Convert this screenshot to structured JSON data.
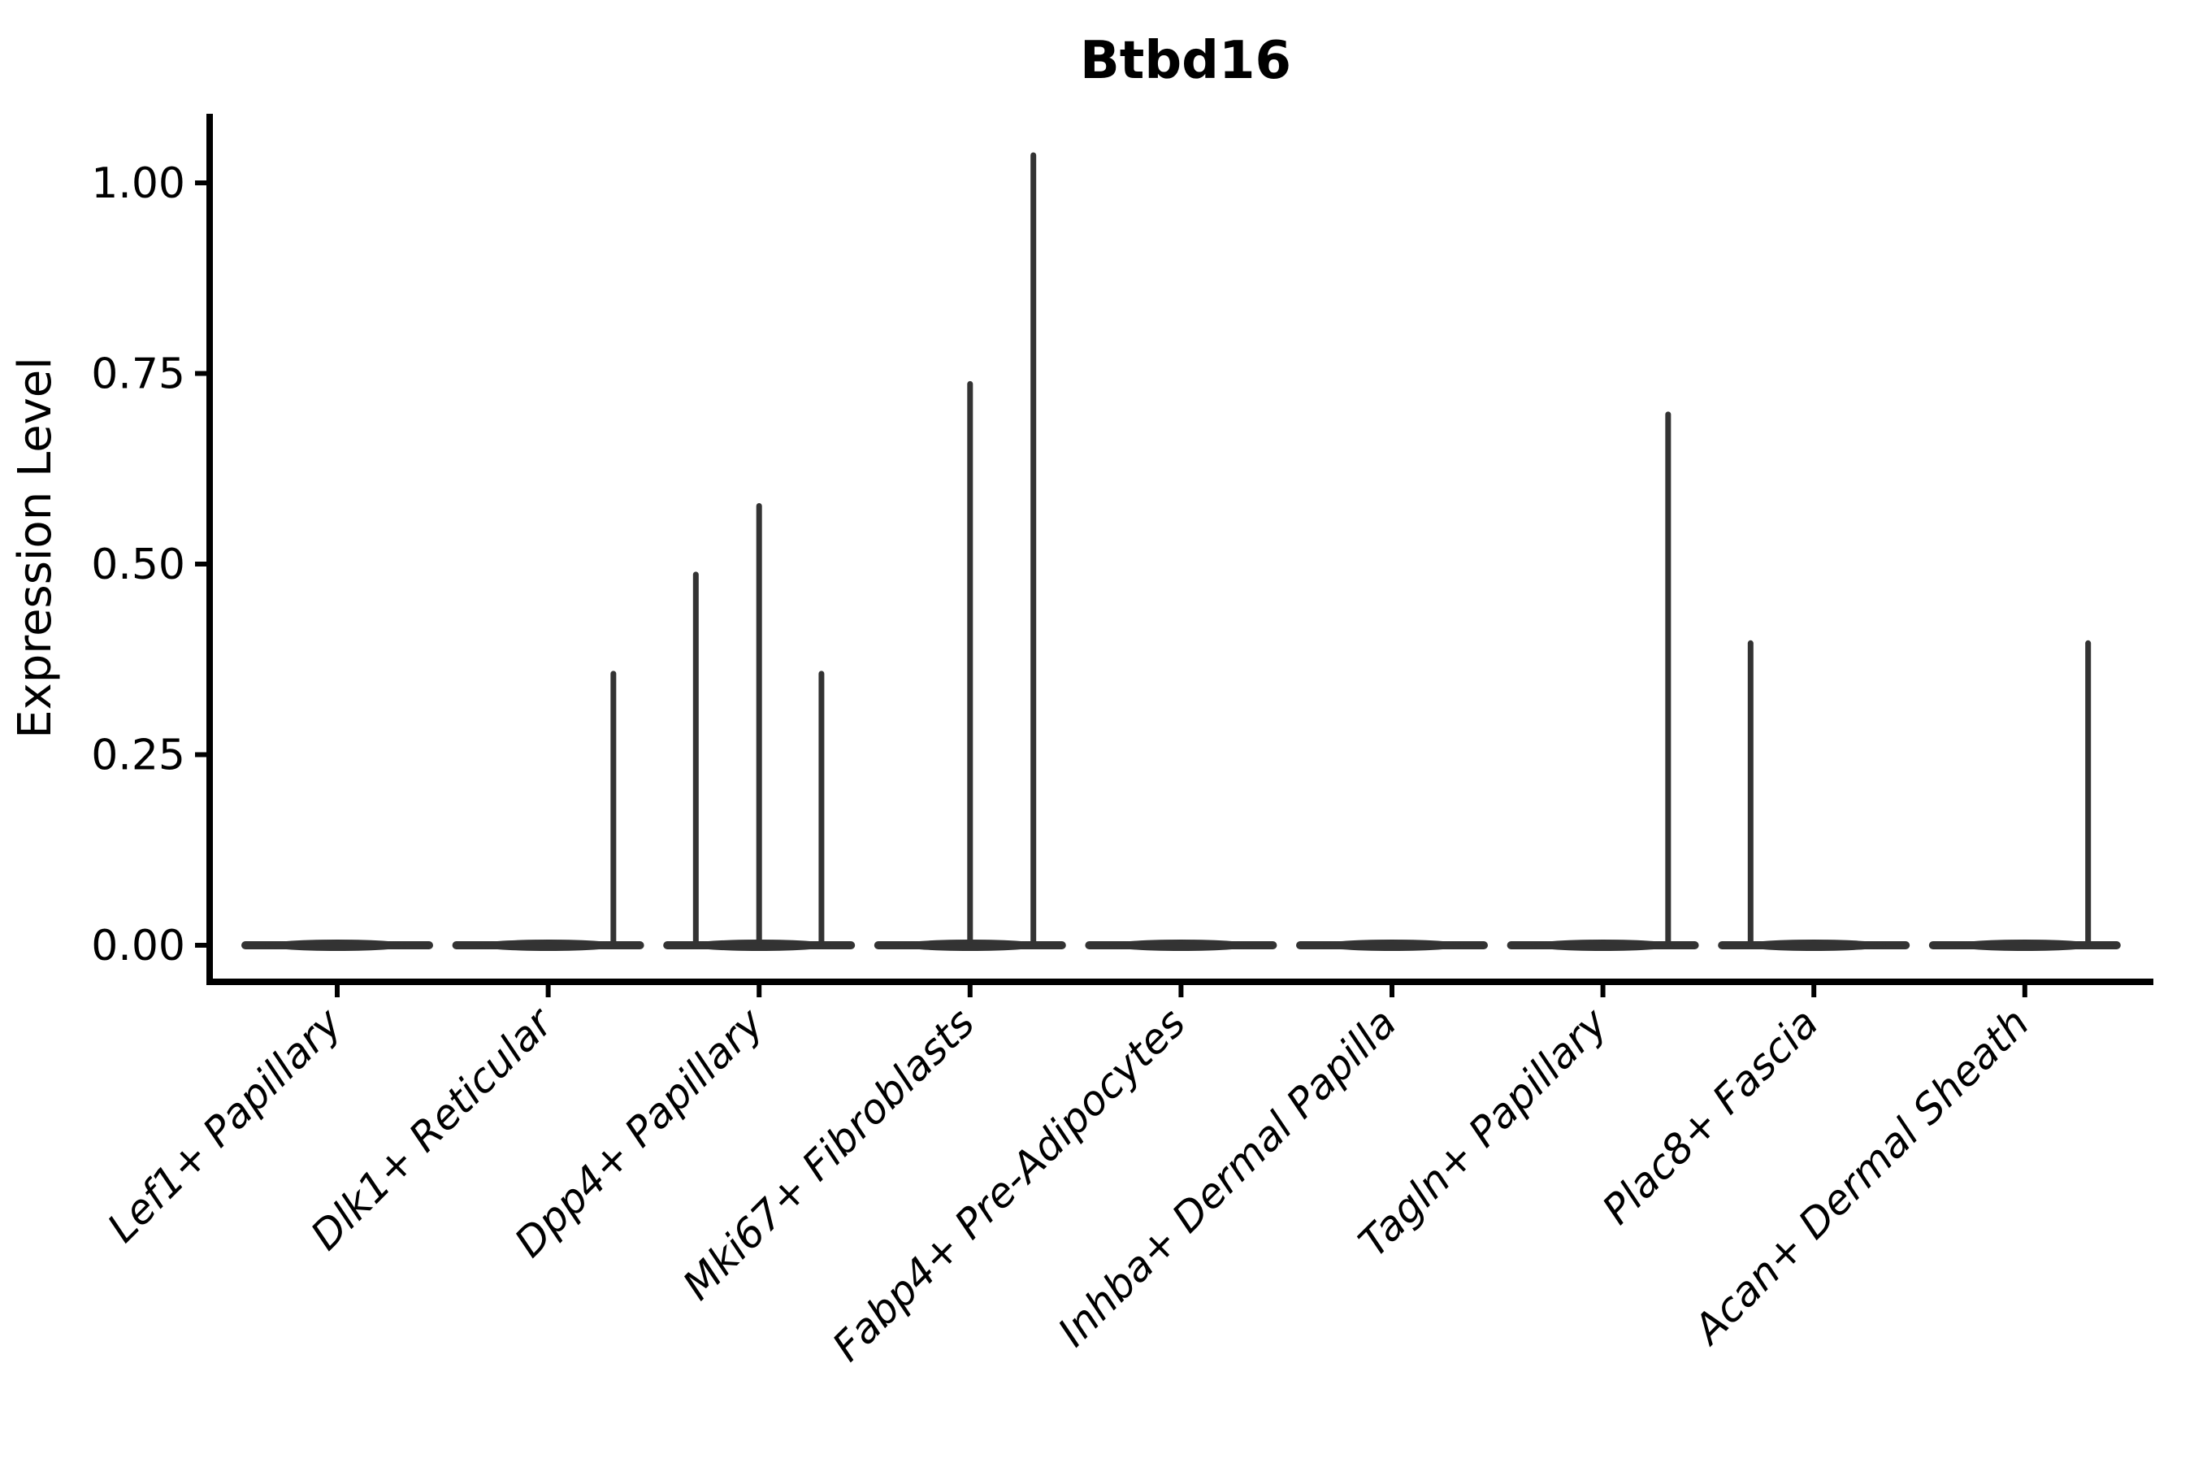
{
  "figure": {
    "background": "#ffffff"
  },
  "chart_data": {
    "type": "violin",
    "title": "Btbd16",
    "xlabel": "",
    "ylabel": "Expression Level",
    "ylim": [
      -0.05,
      1.09
    ],
    "grid": false,
    "legend": "none",
    "yticks": [
      {
        "value": 0.0,
        "label": "0.00"
      },
      {
        "value": 0.25,
        "label": "0.25"
      },
      {
        "value": 0.5,
        "label": "0.50"
      },
      {
        "value": 0.75,
        "label": "0.75"
      },
      {
        "value": 1.0,
        "label": "1.00"
      }
    ],
    "categories": [
      "Lef1+ Papillary",
      "Dlk1+ Reticular",
      "Dpp4+ Papillary",
      "Mki67+ Fibroblasts",
      "Fabp4+ Pre-Adipocytes",
      "Inhba+ Dermal Papilla",
      "Tagln+ Papillary",
      "Plac8+ Fascia",
      "Acan+ Dermal Sheath"
    ],
    "violins": [
      {
        "category": "Lef1+ Papillary",
        "body_value": 0,
        "spikes": []
      },
      {
        "category": "Dlk1+ Reticular",
        "body_value": 0,
        "spikes": [
          {
            "rel_x": 0.68,
            "value": 0.36
          }
        ]
      },
      {
        "category": "Dpp4+ Papillary",
        "body_value": 0,
        "spikes": [
          {
            "rel_x": -0.66,
            "value": 0.49
          },
          {
            "rel_x": 0.0,
            "value": 0.58
          },
          {
            "rel_x": 0.65,
            "value": 0.36
          }
        ]
      },
      {
        "category": "Mki67+ Fibroblasts",
        "body_value": 0,
        "spikes": [
          {
            "rel_x": 0.0,
            "value": 0.74
          },
          {
            "rel_x": 0.66,
            "value": 1.04
          }
        ]
      },
      {
        "category": "Fabp4+ Pre-Adipocytes",
        "body_value": 0,
        "spikes": []
      },
      {
        "category": "Inhba+ Dermal Papilla",
        "body_value": 0,
        "spikes": []
      },
      {
        "category": "Tagln+ Papillary",
        "body_value": 0,
        "spikes": [
          {
            "rel_x": 0.68,
            "value": 0.7
          }
        ]
      },
      {
        "category": "Plac8+ Fascia",
        "body_value": 0,
        "spikes": [
          {
            "rel_x": -0.66,
            "value": 0.4
          }
        ]
      },
      {
        "category": "Acan+ Dermal Sheath",
        "body_value": 0,
        "spikes": [
          {
            "rel_x": 0.66,
            "value": 0.4
          }
        ]
      }
    ],
    "colors": {
      "violin": "#333333",
      "axis": "#000000",
      "text": "#000000",
      "background": "#ffffff"
    }
  }
}
